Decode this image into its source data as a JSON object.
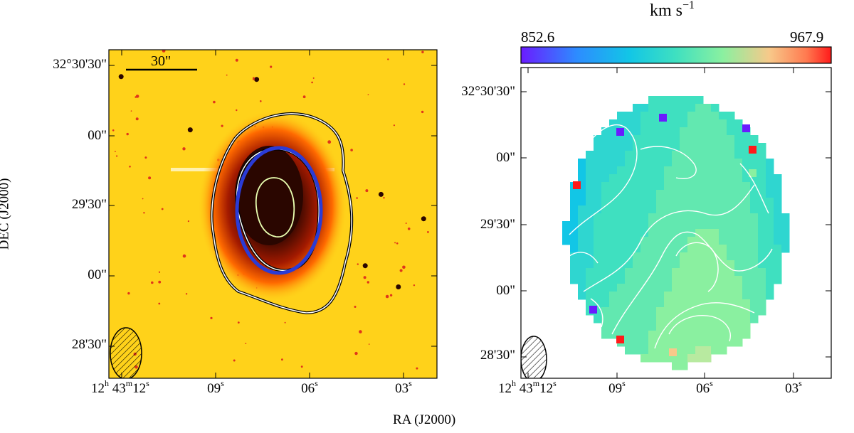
{
  "chart_data": [
    {
      "type": "image",
      "panel": "left",
      "description_label": "optical image with contours",
      "ylabel": "DEC (J2000)",
      "scale_bar_label": "30\"",
      "y_ticks": [
        "32°30'30\"",
        "00\"",
        "29'30\"",
        "00\"",
        "28'30\""
      ],
      "x_ticks": [
        {
          "h": "12",
          "m": "43",
          "s": "12"
        },
        {
          "s": "09"
        },
        {
          "s": "06"
        },
        {
          "s": "03"
        }
      ],
      "colors": {
        "background": "#ffd21a",
        "core": "#2a0600",
        "ellipse": "#2a3bd6",
        "contour_outer": "#ffffff",
        "contour_inner": "#e9ffb0"
      }
    },
    {
      "type": "heatmap",
      "panel": "right",
      "colorbar": {
        "label_base": "km s",
        "label_exp": "−1",
        "min": 852.6,
        "max": 967.9,
        "min_label": "852.6",
        "max_label": "967.9",
        "colors": [
          "#6a1cff",
          "#2d8cff",
          "#12c6e6",
          "#3fe0c0",
          "#8af0a0",
          "#f7c98a",
          "#ff7a50",
          "#ff1a1a"
        ]
      },
      "y_ticks": [
        "32°30'30\"",
        "00\"",
        "29'30\"",
        "00\"",
        "28'30\""
      ],
      "x_ticks": [
        {
          "h": "12",
          "m": "43",
          "s": "12"
        },
        {
          "s": "09"
        },
        {
          "s": "06"
        },
        {
          "s": "03"
        }
      ]
    }
  ],
  "figure": {
    "xlabel": "RA (J2000)"
  }
}
